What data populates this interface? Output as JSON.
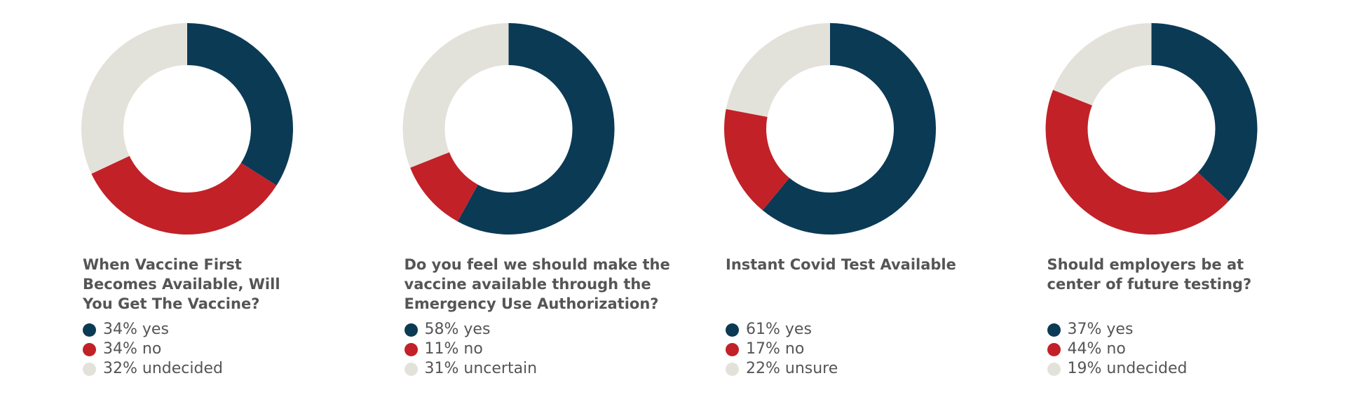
{
  "chart_data": [
    {
      "type": "donut",
      "title": "When Vaccine First\nBecomes Available, Will\nYou Get The Vaccine?",
      "values": [
        34,
        34,
        32
      ],
      "value_labels": [
        "34% yes",
        "34% no",
        "32% undecided"
      ],
      "colors": [
        "#0b3a55",
        "#c22128",
        "#e3e2da"
      ]
    },
    {
      "type": "donut",
      "title": "Do you feel we should make the\nvaccine available through the\nEmergency Use Authorization?",
      "values": [
        58,
        11,
        31
      ],
      "value_labels": [
        "58% yes",
        "11% no",
        "31% uncertain"
      ],
      "colors": [
        "#0b3a55",
        "#c22128",
        "#e3e2da"
      ]
    },
    {
      "type": "donut",
      "title": "Instant Covid Test Available",
      "values": [
        61,
        17,
        22
      ],
      "value_labels": [
        "61% yes",
        "17% no",
        "22% unsure"
      ],
      "colors": [
        "#0b3a55",
        "#c22128",
        "#e3e2da"
      ]
    },
    {
      "type": "donut",
      "title": "Should employers be at\ncenter of future testing?",
      "values": [
        37,
        44,
        19
      ],
      "value_labels": [
        "37% yes",
        "44% no",
        "19% undecided"
      ],
      "colors": [
        "#0b3a55",
        "#c22128",
        "#e3e2da"
      ]
    }
  ]
}
